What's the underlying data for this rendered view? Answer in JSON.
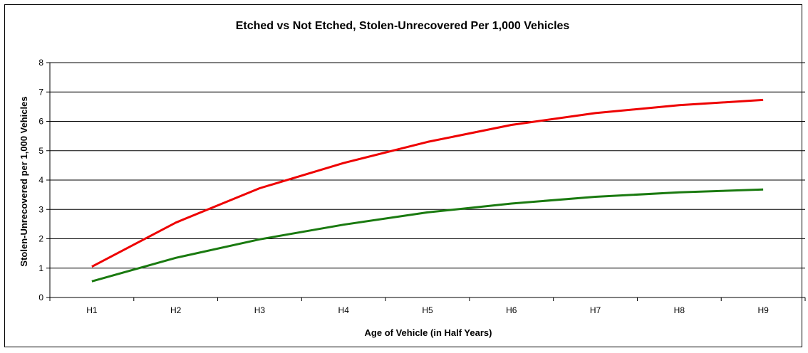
{
  "chart_data": {
    "type": "line",
    "title": "Etched vs Not Etched, Stolen-Unrecovered Per 1,000 Vehicles",
    "xlabel": "Age of Vehicle (in Half Years)",
    "ylabel": "Stolen-Unrecovered per 1,000 Vehicles",
    "categories": [
      "H1",
      "H2",
      "H3",
      "H4",
      "H5",
      "H6",
      "H7",
      "H8",
      "H9"
    ],
    "ylim": [
      0,
      8
    ],
    "yticks": [
      "0",
      "1",
      "2",
      "3",
      "4",
      "5",
      "6",
      "7",
      "8"
    ],
    "grid": true,
    "legend": "none",
    "series": [
      {
        "color": "#ee0000",
        "values": [
          1.05,
          2.55,
          3.72,
          4.58,
          5.3,
          5.88,
          6.28,
          6.55,
          6.73
        ]
      },
      {
        "color": "#1a7a10",
        "values": [
          0.55,
          1.35,
          1.98,
          2.48,
          2.9,
          3.2,
          3.43,
          3.58,
          3.68
        ]
      }
    ]
  }
}
